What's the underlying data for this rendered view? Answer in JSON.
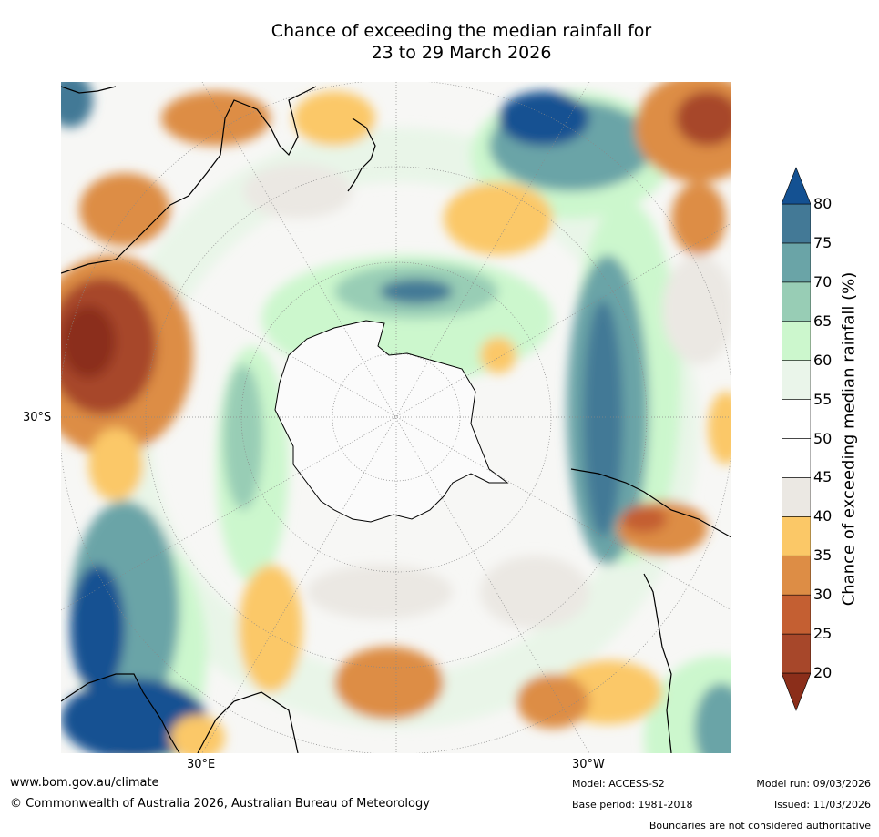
{
  "title": {
    "line1": "Chance of exceeding the median rainfall for",
    "line2": "23 to 29 March 2026"
  },
  "map": {
    "projection": "South polar stereographic",
    "latitude_labels": [
      "30°S"
    ],
    "longitude_labels": [
      "30°E",
      "30°W"
    ]
  },
  "legend": {
    "title": "Chance of exceeding median rainfall (%)",
    "ticks": [
      "20",
      "25",
      "30",
      "35",
      "40",
      "45",
      "50",
      "55",
      "60",
      "65",
      "70",
      "75",
      "80"
    ],
    "bands": [
      {
        "range": "<20",
        "color": "#8b2e1a"
      },
      {
        "range": "20-25",
        "color": "#a7472a"
      },
      {
        "range": "25-30",
        "color": "#c45f32"
      },
      {
        "range": "30-35",
        "color": "#dd8d45"
      },
      {
        "range": "35-40",
        "color": "#fbc867"
      },
      {
        "range": "40-45",
        "color": "#ebe8e3"
      },
      {
        "range": "45-50",
        "color": "#ffffff"
      },
      {
        "range": "50-55",
        "color": "#ffffff"
      },
      {
        "range": "55-60",
        "color": "#eaf5ea"
      },
      {
        "range": "60-65",
        "color": "#ccf7cd"
      },
      {
        "range": "65-70",
        "color": "#98cdb5"
      },
      {
        "range": "70-75",
        "color": "#6aa4a7"
      },
      {
        "range": "75-80",
        "color": "#437996"
      },
      {
        "range": ">80",
        "color": "#145192"
      }
    ]
  },
  "footer": {
    "website": "www.bom.gov.au/climate",
    "copyright": "© Commonwealth of Australia 2026, Australian Bureau of Meteorology",
    "model": "Model: ACCESS-S2",
    "base_period": "Base period: 1981-2018",
    "model_run": "Model run: 09/03/2026",
    "issued": "Issued: 11/03/2026",
    "disclaimer": "Boundaries are not considered authoritative"
  }
}
